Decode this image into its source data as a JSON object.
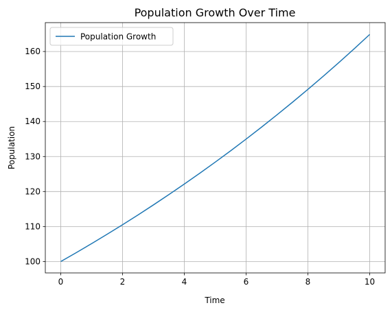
{
  "chart_data": {
    "type": "line",
    "title": "Population Growth Over Time",
    "xlabel": "Time",
    "ylabel": "Population",
    "xlim": [
      -0.5,
      10.5
    ],
    "ylim": [
      96.75,
      168.25
    ],
    "xticks": [
      0,
      2,
      4,
      6,
      8,
      10
    ],
    "yticks": [
      100,
      110,
      120,
      130,
      140,
      150,
      160
    ],
    "grid": true,
    "legend_position": "upper-left",
    "series": [
      {
        "name": "Population Growth",
        "color": "#1f77b4",
        "x": [
          0,
          0.5,
          1,
          1.5,
          2,
          2.5,
          3,
          3.5,
          4,
          4.5,
          5,
          5.5,
          6,
          6.5,
          7,
          7.5,
          8,
          8.5,
          9,
          9.5,
          10
        ],
        "y": [
          100,
          102.53,
          105.13,
          107.79,
          110.52,
          113.31,
          116.18,
          119.12,
          122.14,
          125.23,
          128.4,
          131.65,
          134.99,
          138.4,
          141.91,
          145.5,
          149.18,
          152.96,
          156.83,
          160.8,
          164.87
        ]
      }
    ]
  }
}
